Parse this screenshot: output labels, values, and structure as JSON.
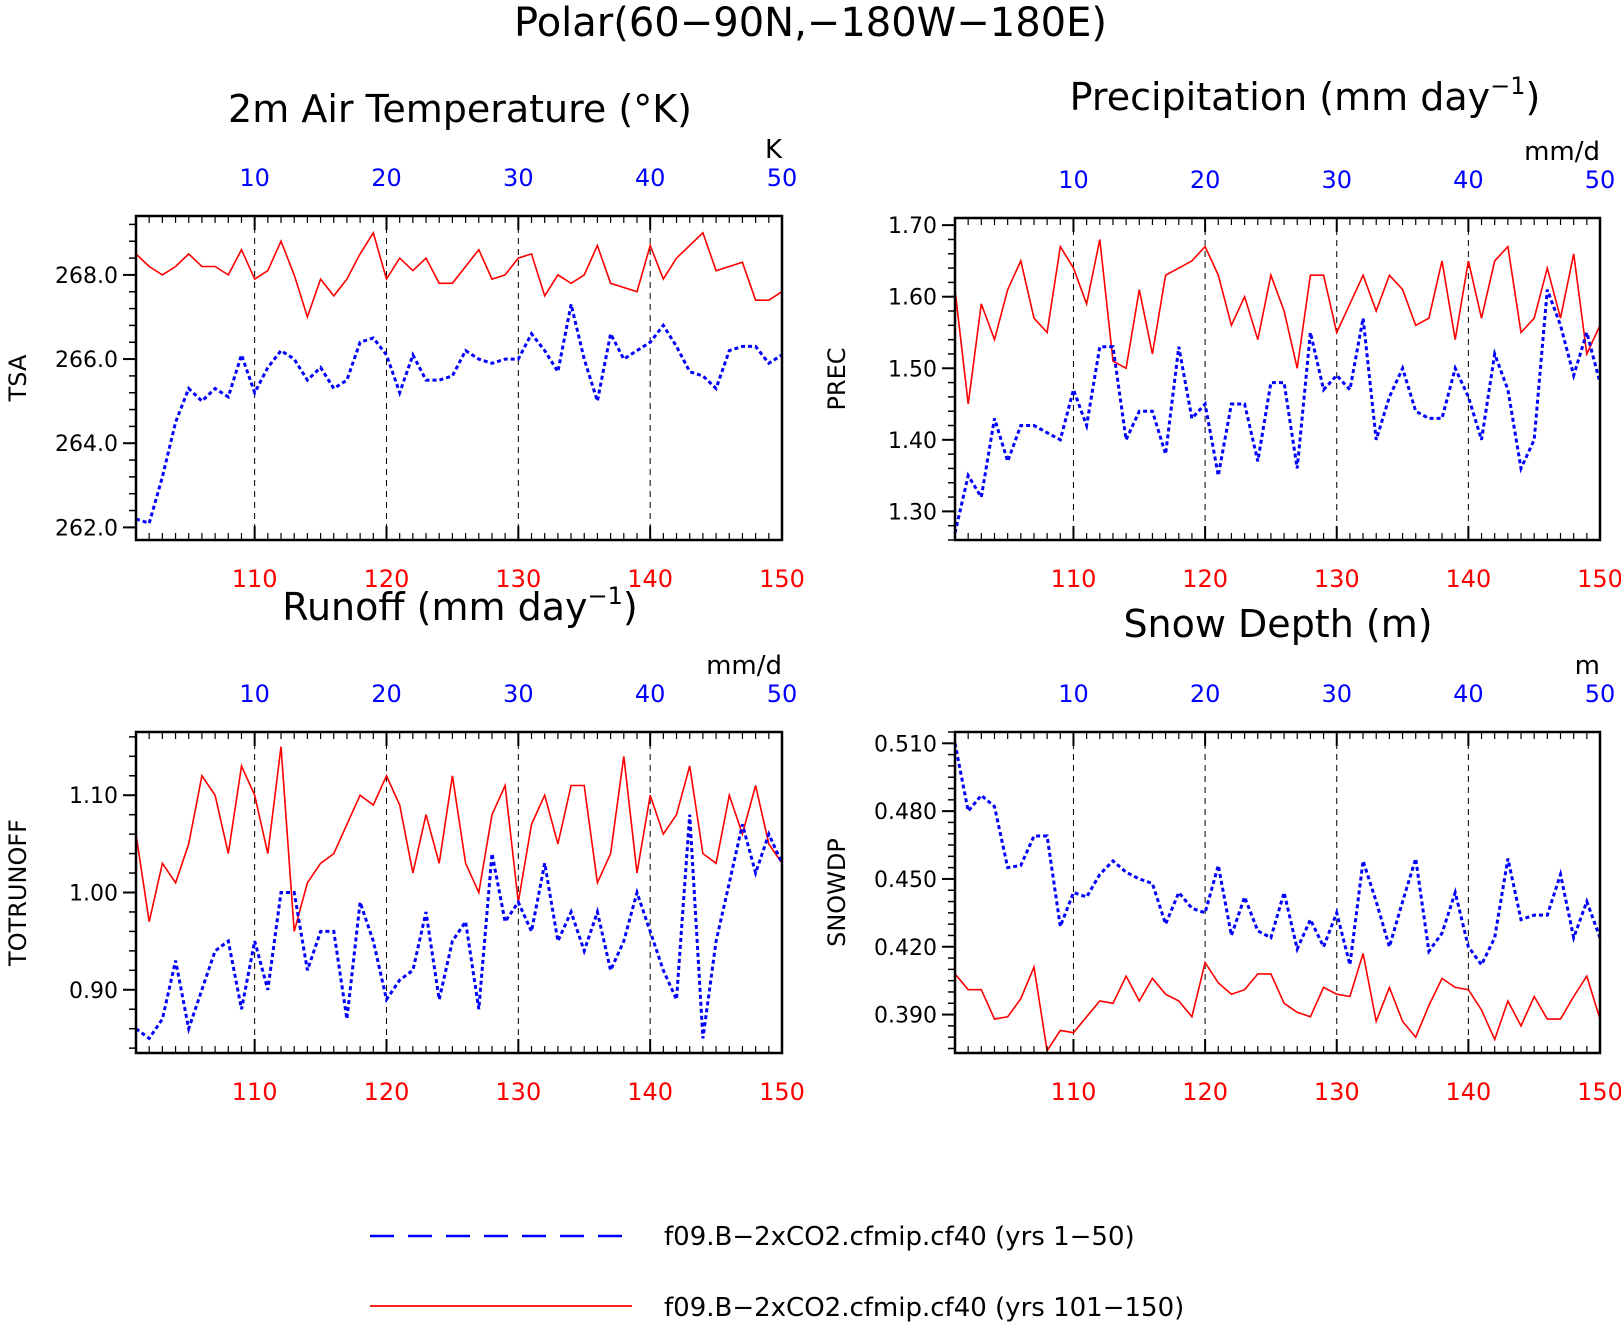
{
  "title": "Polar(60−90N,−180W−180E)",
  "legend": [
    {
      "label": "f09.B−2xCO2.cfmip.cf40 (yrs 1−50)",
      "color": "#0000ff",
      "style": "dashed"
    },
    {
      "label": "f09.B−2xCO2.cfmip.cf40 (yrs 101−150)",
      "color": "#ff0000",
      "style": "solid"
    }
  ],
  "colors": {
    "series1": "#0000ff",
    "series2": "#ff0000",
    "axis": "#000000"
  },
  "chart_data": [
    {
      "type": "line",
      "title": "2m Air Temperature (°K)",
      "title_main": "2m Air Temperature (°K)",
      "title_sup": "",
      "title_end": "",
      "ylabel": "TSA",
      "units": "K",
      "ylim": [
        261.7,
        269.4
      ],
      "yticks": [
        262.0,
        264.0,
        266.0,
        268.0
      ],
      "ytick_labels": [
        "262.0",
        "264.0",
        "266.0",
        "268.0"
      ],
      "yminor": 0.4,
      "xlim_bottom": [
        101,
        150
      ],
      "xticks_bottom": [
        110,
        120,
        130,
        140,
        150
      ],
      "xticks_top": [
        10,
        20,
        30,
        40,
        50
      ],
      "series": [
        {
          "name": "f09.B−2xCO2.cfmip.cf40 (yrs 101−150)",
          "color": "#ff0000",
          "style": "solid",
          "values": [
            268.5,
            268.2,
            268.0,
            268.2,
            268.5,
            268.2,
            268.2,
            268.0,
            268.6,
            267.9,
            268.1,
            268.8,
            268.0,
            267.0,
            267.9,
            267.5,
            267.9,
            268.5,
            269.0,
            267.9,
            268.4,
            268.1,
            268.4,
            267.8,
            267.8,
            268.2,
            268.6,
            267.9,
            268.0,
            268.4,
            268.5,
            267.5,
            268.0,
            267.8,
            268.0,
            268.7,
            267.8,
            267.7,
            267.6,
            268.7,
            267.9,
            268.4,
            268.7,
            269.0,
            268.1,
            268.2,
            268.3,
            267.4,
            267.4,
            267.6
          ]
        },
        {
          "name": "f09.B−2xCO2.cfmip.cf40 (yrs 1−50)",
          "color": "#0000ff",
          "style": "dashed",
          "values": [
            262.2,
            262.1,
            263.2,
            264.5,
            265.3,
            265.0,
            265.3,
            265.1,
            266.1,
            265.2,
            265.8,
            266.2,
            266.0,
            265.5,
            265.8,
            265.3,
            265.5,
            266.4,
            266.5,
            266.1,
            265.2,
            266.1,
            265.5,
            265.5,
            265.6,
            266.2,
            266.0,
            265.9,
            266.0,
            266.0,
            266.6,
            266.2,
            265.7,
            267.3,
            266.0,
            265.0,
            266.6,
            266.0,
            266.2,
            266.4,
            266.8,
            266.3,
            265.7,
            265.6,
            265.3,
            266.2,
            266.3,
            266.3,
            265.9,
            266.1
          ]
        }
      ]
    },
    {
      "type": "line",
      "title": "Precipitation (mm day−1)",
      "title_main": "Precipitation (mm day",
      "title_sup": "−1",
      "title_end": ")",
      "ylabel": "PREC",
      "units": "mm/d",
      "ylim": [
        1.26,
        1.71
      ],
      "yticks": [
        1.3,
        1.4,
        1.5,
        1.6,
        1.7
      ],
      "ytick_labels": [
        "1.30",
        "1.40",
        "1.50",
        "1.60",
        "1.70"
      ],
      "yminor": 0.02,
      "xlim_bottom": [
        101,
        150
      ],
      "xticks_bottom": [
        110,
        120,
        130,
        140,
        150
      ],
      "xticks_top": [
        10,
        20,
        30,
        40,
        50
      ],
      "series": [
        {
          "name": "f09.B−2xCO2.cfmip.cf40 (yrs 101−150)",
          "color": "#ff0000",
          "style": "solid",
          "values": [
            1.61,
            1.45,
            1.59,
            1.54,
            1.61,
            1.65,
            1.57,
            1.55,
            1.67,
            1.64,
            1.59,
            1.68,
            1.51,
            1.5,
            1.61,
            1.52,
            1.63,
            1.64,
            1.65,
            1.67,
            1.63,
            1.56,
            1.6,
            1.54,
            1.63,
            1.58,
            1.5,
            1.63,
            1.63,
            1.55,
            1.59,
            1.63,
            1.58,
            1.63,
            1.61,
            1.56,
            1.57,
            1.65,
            1.54,
            1.65,
            1.57,
            1.65,
            1.67,
            1.55,
            1.57,
            1.64,
            1.57,
            1.66,
            1.52,
            1.56
          ]
        },
        {
          "name": "f09.B−2xCO2.cfmip.cf40 (yrs 1−50)",
          "color": "#0000ff",
          "style": "dashed",
          "values": [
            1.27,
            1.35,
            1.32,
            1.43,
            1.37,
            1.42,
            1.42,
            1.41,
            1.4,
            1.47,
            1.42,
            1.53,
            1.53,
            1.4,
            1.44,
            1.44,
            1.38,
            1.53,
            1.43,
            1.45,
            1.35,
            1.45,
            1.45,
            1.37,
            1.48,
            1.48,
            1.36,
            1.55,
            1.47,
            1.49,
            1.47,
            1.57,
            1.4,
            1.46,
            1.5,
            1.44,
            1.43,
            1.43,
            1.5,
            1.46,
            1.4,
            1.52,
            1.47,
            1.36,
            1.4,
            1.61,
            1.56,
            1.49,
            1.55,
            1.48
          ]
        }
      ]
    },
    {
      "type": "line",
      "title": "Runoff (mm day−1)",
      "title_main": "Runoff (mm day",
      "title_sup": "−1",
      "title_end": ")",
      "ylabel": "TOTRUNOFF",
      "units": "mm/d",
      "ylim": [
        0.835,
        1.165
      ],
      "yticks": [
        0.9,
        1.0,
        1.1
      ],
      "ytick_labels": [
        "0.90",
        "1.00",
        "1.10"
      ],
      "yminor": 0.02,
      "xlim_bottom": [
        101,
        150
      ],
      "xticks_bottom": [
        110,
        120,
        130,
        140,
        150
      ],
      "xticks_top": [
        10,
        20,
        30,
        40,
        50
      ],
      "series": [
        {
          "name": "f09.B−2xCO2.cfmip.cf40 (yrs 101−150)",
          "color": "#ff0000",
          "style": "solid",
          "values": [
            1.06,
            0.97,
            1.03,
            1.01,
            1.05,
            1.12,
            1.1,
            1.04,
            1.13,
            1.1,
            1.04,
            1.15,
            0.96,
            1.01,
            1.03,
            1.04,
            1.07,
            1.1,
            1.09,
            1.12,
            1.09,
            1.02,
            1.08,
            1.03,
            1.12,
            1.03,
            1.0,
            1.08,
            1.11,
            0.99,
            1.07,
            1.1,
            1.05,
            1.11,
            1.11,
            1.01,
            1.04,
            1.14,
            1.02,
            1.1,
            1.06,
            1.08,
            1.13,
            1.04,
            1.03,
            1.1,
            1.06,
            1.11,
            1.05,
            1.03
          ]
        },
        {
          "name": "f09.B−2xCO2.cfmip.cf40 (yrs 1−50)",
          "color": "#0000ff",
          "style": "dashed",
          "values": [
            0.86,
            0.85,
            0.87,
            0.93,
            0.86,
            0.9,
            0.94,
            0.95,
            0.88,
            0.95,
            0.9,
            1.0,
            1.0,
            0.92,
            0.96,
            0.96,
            0.87,
            0.99,
            0.95,
            0.89,
            0.91,
            0.92,
            0.98,
            0.89,
            0.95,
            0.97,
            0.88,
            1.04,
            0.97,
            0.99,
            0.96,
            1.03,
            0.95,
            0.98,
            0.94,
            0.98,
            0.92,
            0.95,
            1.0,
            0.96,
            0.92,
            0.89,
            1.08,
            0.85,
            0.95,
            1.01,
            1.07,
            1.02,
            1.06,
            1.03
          ]
        }
      ]
    },
    {
      "type": "line",
      "title": "Snow Depth (m)",
      "title_main": "Snow Depth (m)",
      "title_sup": "",
      "title_end": "",
      "ylabel": "SNOWDP",
      "units": "m",
      "ylim": [
        0.373,
        0.515
      ],
      "yticks": [
        0.39,
        0.42,
        0.45,
        0.48,
        0.51
      ],
      "ytick_labels": [
        "0.390",
        "0.420",
        "0.450",
        "0.480",
        "0.510"
      ],
      "yminor": 0.005,
      "xlim_bottom": [
        101,
        150
      ],
      "xticks_bottom": [
        110,
        120,
        130,
        140,
        150
      ],
      "xticks_top": [
        10,
        20,
        30,
        40,
        50
      ],
      "series": [
        {
          "name": "f09.B−2xCO2.cfmip.cf40 (yrs 101−150)",
          "color": "#ff0000",
          "style": "solid",
          "values": [
            0.408,
            0.401,
            0.401,
            0.388,
            0.389,
            0.397,
            0.411,
            0.374,
            0.383,
            0.382,
            0.389,
            0.396,
            0.395,
            0.407,
            0.396,
            0.406,
            0.399,
            0.396,
            0.389,
            0.413,
            0.404,
            0.399,
            0.401,
            0.408,
            0.408,
            0.395,
            0.391,
            0.389,
            0.402,
            0.399,
            0.398,
            0.417,
            0.387,
            0.402,
            0.387,
            0.38,
            0.394,
            0.406,
            0.402,
            0.401,
            0.392,
            0.379,
            0.396,
            0.385,
            0.398,
            0.388,
            0.388,
            0.398,
            0.407,
            0.388
          ]
        },
        {
          "name": "f09.B−2xCO2.cfmip.cf40 (yrs 1−50)",
          "color": "#0000ff",
          "style": "dashed",
          "values": [
            0.51,
            0.48,
            0.487,
            0.482,
            0.455,
            0.456,
            0.469,
            0.469,
            0.429,
            0.444,
            0.442,
            0.452,
            0.458,
            0.453,
            0.45,
            0.448,
            0.43,
            0.444,
            0.437,
            0.435,
            0.456,
            0.425,
            0.442,
            0.427,
            0.424,
            0.444,
            0.419,
            0.432,
            0.42,
            0.435,
            0.412,
            0.458,
            0.44,
            0.42,
            0.44,
            0.459,
            0.418,
            0.426,
            0.444,
            0.42,
            0.412,
            0.424,
            0.459,
            0.432,
            0.434,
            0.434,
            0.452,
            0.424,
            0.44,
            0.424
          ]
        }
      ]
    }
  ]
}
